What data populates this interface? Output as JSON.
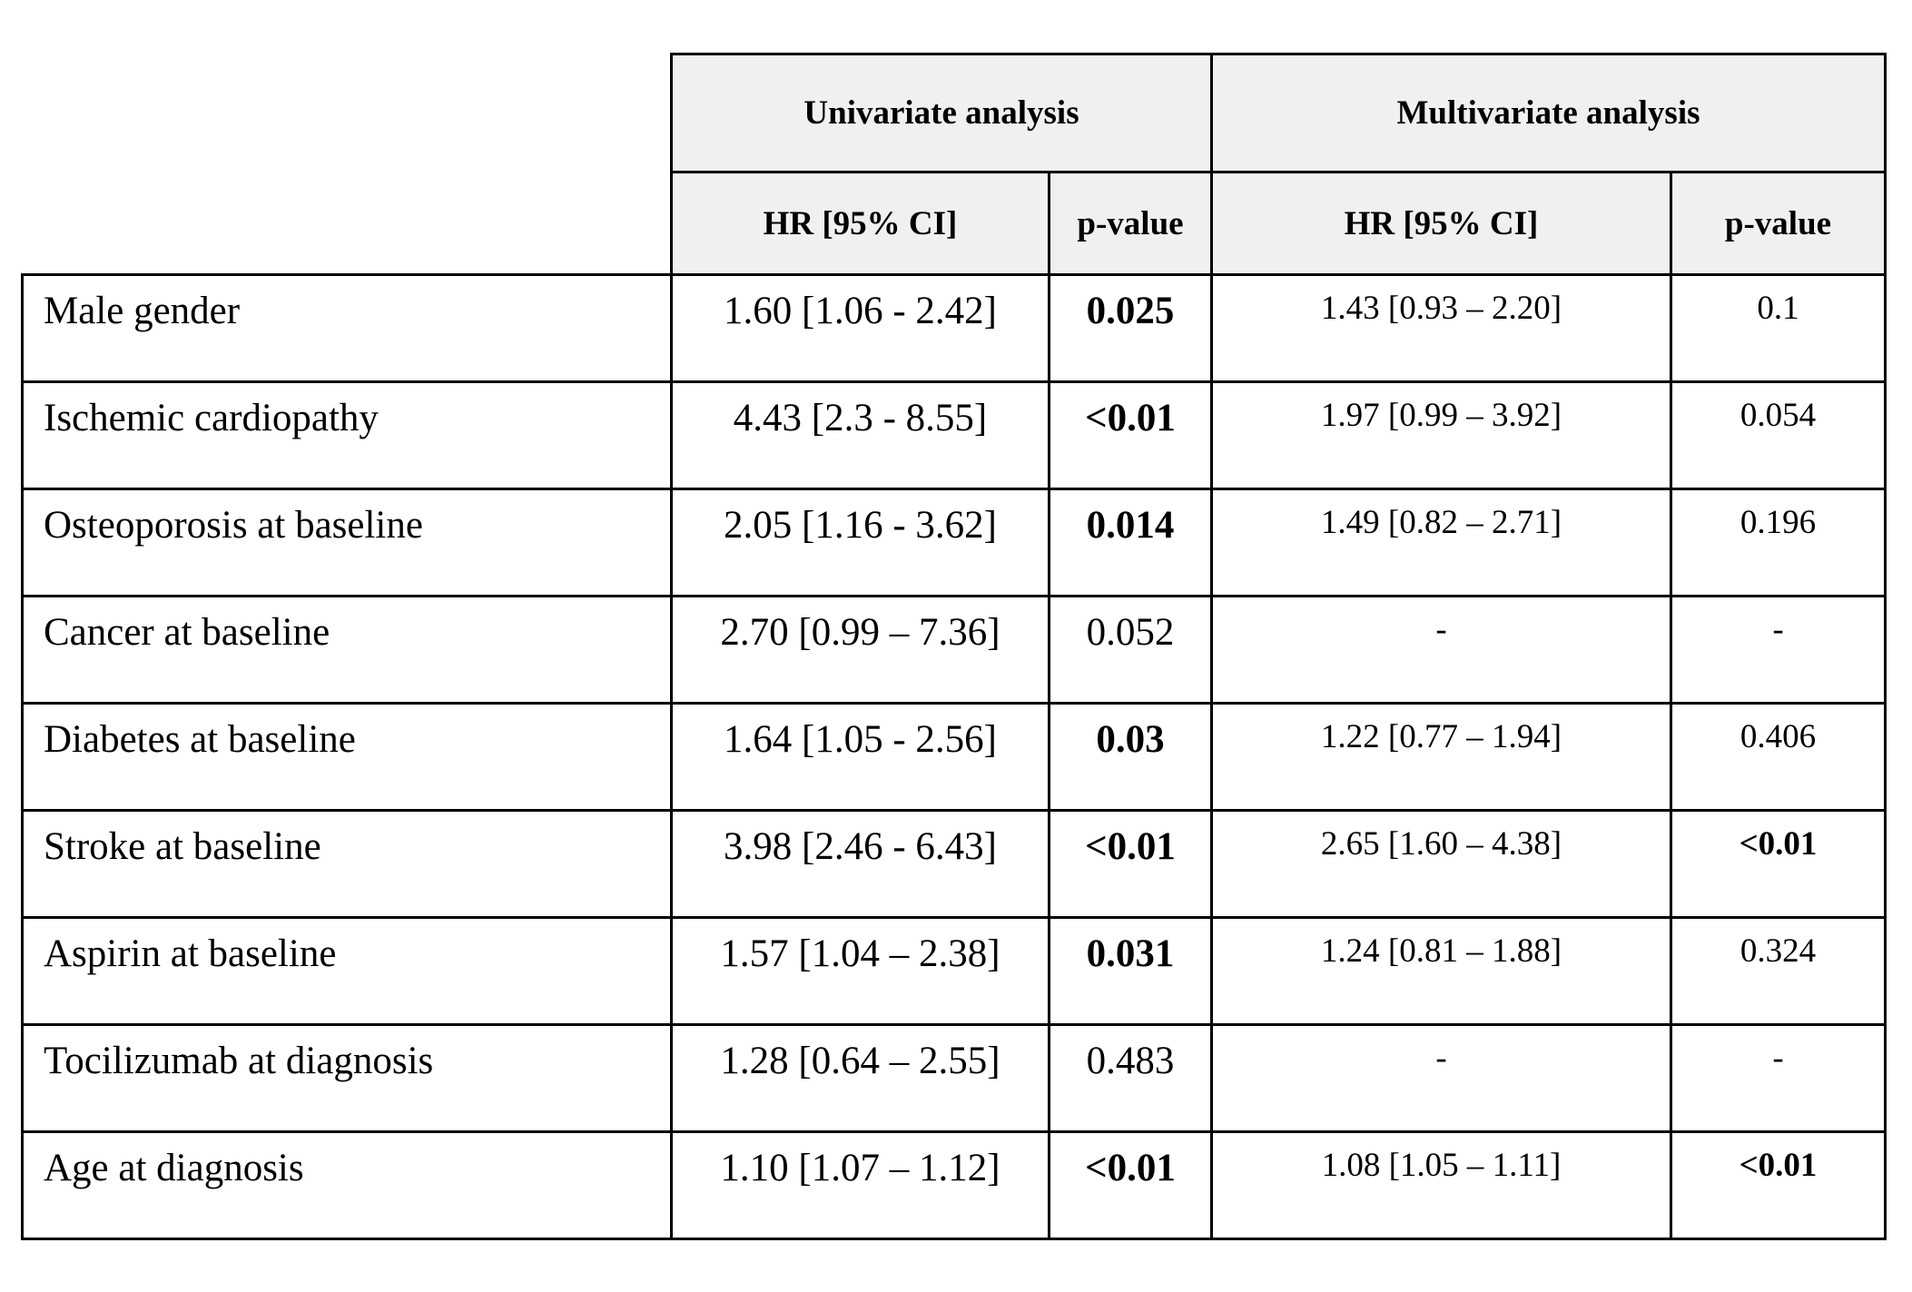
{
  "header": {
    "univariate": "Univariate analysis",
    "multivariate": "Multivariate analysis",
    "uni_hr": "HR [95% CI]",
    "uni_p": "p-value",
    "multi_hr": "HR [95% CI]",
    "multi_p": "p-value"
  },
  "rows": [
    {
      "label": "Male gender",
      "uni_hr": "1.60 [1.06 - 2.42]",
      "uni_p": "0.025",
      "uni_p_bold": true,
      "multi_hr": "1.43 [0.93 – 2.20]",
      "multi_p": "0.1",
      "multi_p_bold": false
    },
    {
      "label": "Ischemic cardiopathy",
      "uni_hr": "4.43 [2.3 - 8.55]",
      "uni_p": "<0.01",
      "uni_p_bold": true,
      "multi_hr": "1.97 [0.99 – 3.92]",
      "multi_p": "0.054",
      "multi_p_bold": false
    },
    {
      "label": "Osteoporosis at baseline",
      "uni_hr": "2.05 [1.16 - 3.62]",
      "uni_p": "0.014",
      "uni_p_bold": true,
      "multi_hr": "1.49 [0.82 – 2.71]",
      "multi_p": "0.196",
      "multi_p_bold": false
    },
    {
      "label": "Cancer at baseline",
      "uni_hr": "2.70 [0.99 – 7.36]",
      "uni_p": "0.052",
      "uni_p_bold": false,
      "multi_hr": "-",
      "multi_p": "-",
      "multi_p_bold": false
    },
    {
      "label": "Diabetes at baseline",
      "uni_hr": "1.64 [1.05 - 2.56]",
      "uni_p": "0.03",
      "uni_p_bold": true,
      "multi_hr": "1.22 [0.77 – 1.94]",
      "multi_p": "0.406",
      "multi_p_bold": false
    },
    {
      "label": "Stroke at baseline",
      "uni_hr": "3.98 [2.46 - 6.43]",
      "uni_p": "<0.01",
      "uni_p_bold": true,
      "multi_hr": "2.65 [1.60 – 4.38]",
      "multi_p": "<0.01",
      "multi_p_bold": true
    },
    {
      "label": "Aspirin at baseline",
      "uni_hr": "1.57 [1.04 – 2.38]",
      "uni_p": "0.031",
      "uni_p_bold": true,
      "multi_hr": "1.24 [0.81 – 1.88]",
      "multi_p": "0.324",
      "multi_p_bold": false
    },
    {
      "label": "Tocilizumab at diagnosis",
      "uni_hr": "1.28 [0.64 – 2.55]",
      "uni_p": "0.483",
      "uni_p_bold": false,
      "multi_hr": "-",
      "multi_p": "-",
      "multi_p_bold": false
    },
    {
      "label": "Age at diagnosis",
      "uni_hr": "1.10 [1.07 – 1.12]",
      "uni_p": "<0.01",
      "uni_p_bold": true,
      "multi_hr": "1.08 [1.05 – 1.11]",
      "multi_p": "<0.01",
      "multi_p_bold": true
    }
  ]
}
